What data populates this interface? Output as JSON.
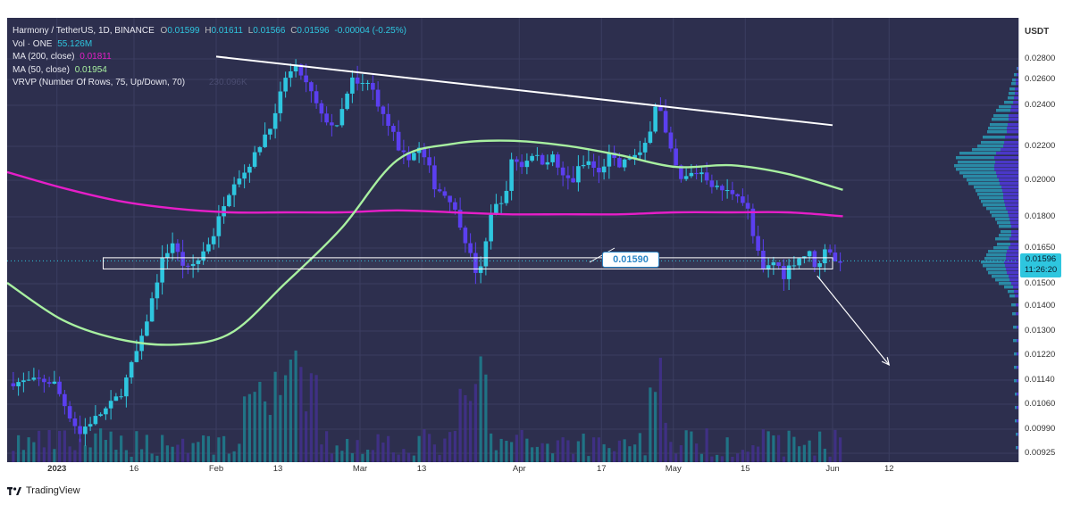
{
  "legend": {
    "symbol_line": "Harmony / TetherUS, 1D, BINANCE",
    "ohlc": [
      {
        "k": "O",
        "v": "0.01599"
      },
      {
        "k": "H",
        "v": "0.01611"
      },
      {
        "k": "L",
        "v": "0.01566"
      },
      {
        "k": "C",
        "v": "0.01596"
      }
    ],
    "change": "-0.00004 (-0.25%)",
    "vol_label": "Vol · ONE",
    "vol_value": "55.126M",
    "ma200_label": "MA (200, close)",
    "ma200_value": "0.01811",
    "ma50_label": "MA (50, close)",
    "ma50_value": "0.01954",
    "vrvp_label": "VRVP (Number Of Rows, 75, Up/Down, 70)",
    "vrvp_value": "230.096K"
  },
  "price_axis": {
    "unit": "USDT",
    "ticks": [
      "0.02800",
      "0.02600",
      "0.02400",
      "0.02200",
      "0.02000",
      "0.01800",
      "0.01650",
      "0.01500",
      "0.01400",
      "0.01300",
      "0.01220",
      "0.01140",
      "0.01060",
      "0.00990",
      "0.00925"
    ]
  },
  "last_price": {
    "price": "0.01596",
    "countdown": "11:26:20"
  },
  "time_axis": {
    "labels": [
      {
        "t": "2023",
        "bold": true
      },
      {
        "t": "16",
        "bold": false
      },
      {
        "t": "Feb",
        "bold": false
      },
      {
        "t": "13",
        "bold": false
      },
      {
        "t": "Mar",
        "bold": false
      },
      {
        "t": "13",
        "bold": false
      },
      {
        "t": "Apr",
        "bold": false
      },
      {
        "t": "17",
        "bold": false
      },
      {
        "t": "May",
        "bold": false
      },
      {
        "t": "15",
        "bold": false
      },
      {
        "t": "Jun",
        "bold": false
      },
      {
        "t": "12",
        "bold": false
      }
    ]
  },
  "annotation": {
    "support_label": "0.01590"
  },
  "branding": {
    "name": "TradingView"
  },
  "colors": {
    "background": "#2d2f4e",
    "up": "#2ec6df",
    "down": "#5b3ff0",
    "ma200": "#e61ec8",
    "ma50": "#a8f0a0",
    "trendline": "#ffffff"
  },
  "chart_data": {
    "type": "line",
    "title": "Harmony / TetherUS, 1D, BINANCE",
    "y_unit": "USDT",
    "x_range": [
      "2022-12-23",
      "2023-06-15"
    ],
    "y_scale": "log",
    "series": [
      {
        "name": "MA (200, close)",
        "values": [
          0.0205,
          0.0196,
          0.0189,
          0.0185,
          0.0183,
          0.0183,
          0.0183,
          0.0184,
          0.0183,
          0.0182,
          0.0182,
          0.0182,
          0.0183,
          0.0183,
          0.0183,
          0.0181
        ]
      },
      {
        "name": "MA (50, close)",
        "values": [
          0.015,
          0.0135,
          0.0128,
          0.0126,
          0.013,
          0.015,
          0.0175,
          0.0212,
          0.0222,
          0.0224,
          0.0221,
          0.0215,
          0.0208,
          0.0209,
          0.0204,
          0.0195
        ]
      }
    ],
    "support_zone": {
      "label": "0.01590",
      "low": 0.0156,
      "high": 0.0161
    },
    "trendline": {
      "from": [
        "2023-02-01",
        0.0284
      ],
      "to": [
        "2023-06-01",
        0.0234
      ]
    },
    "projected_move": {
      "from": 0.0153,
      "to": 0.0119
    }
  }
}
